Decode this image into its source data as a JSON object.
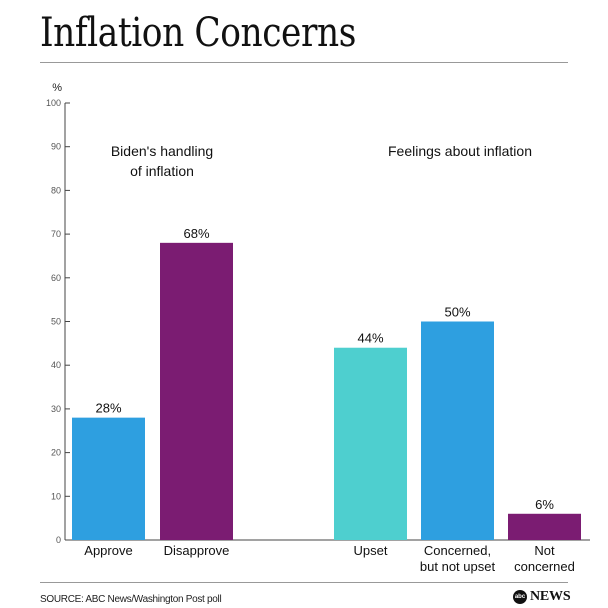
{
  "title": "Inflation Concerns",
  "source": "SOURCE: ABC News/Washington Post poll",
  "logo": {
    "text": "NEWS",
    "mark": "abc"
  },
  "chart_data": {
    "type": "bar",
    "ylabel": "%",
    "ylim": [
      0,
      100
    ],
    "yticks": [
      0,
      10,
      20,
      30,
      40,
      50,
      60,
      70,
      80,
      90,
      100
    ],
    "grid": false,
    "groups": [
      {
        "title_lines": [
          "Biden's handling",
          "of inflation"
        ],
        "bars": [
          {
            "category_lines": [
              "Approve"
            ],
            "value": 28,
            "label": "28%",
            "color": "#2e9fe0"
          },
          {
            "category_lines": [
              "Disapprove"
            ],
            "value": 68,
            "label": "68%",
            "color": "#7b1c72"
          }
        ]
      },
      {
        "title_lines": [
          "Feelings about inflation"
        ],
        "bars": [
          {
            "category_lines": [
              "Upset"
            ],
            "value": 44,
            "label": "44%",
            "color": "#4ecfcf"
          },
          {
            "category_lines": [
              "Concerned,",
              "but not upset"
            ],
            "value": 50,
            "label": "50%",
            "color": "#2e9fe0"
          },
          {
            "category_lines": [
              "Not",
              "concerned"
            ],
            "value": 6,
            "label": "6%",
            "color": "#7b1c72"
          }
        ]
      }
    ]
  }
}
